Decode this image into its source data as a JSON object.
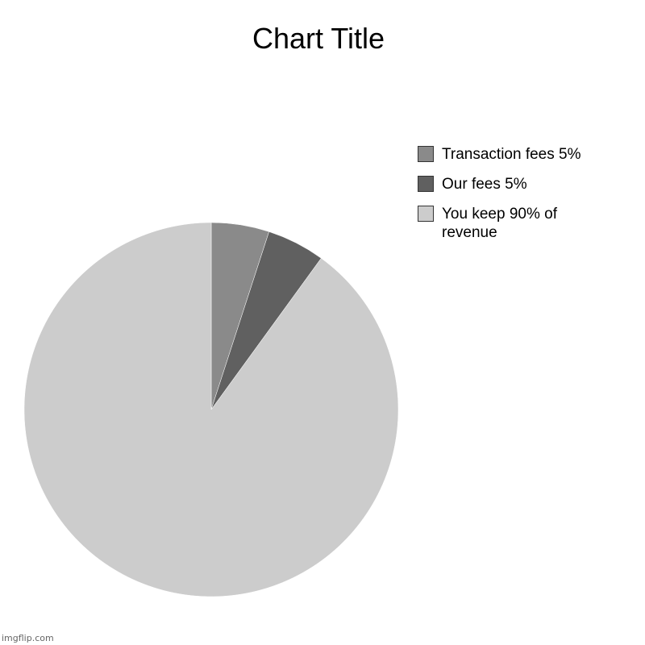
{
  "chart_data": {
    "type": "pie",
    "title": "Chart Title",
    "slices": [
      {
        "label": "Transaction fees 5%",
        "value": 5,
        "color": "#8a8a8a"
      },
      {
        "label": "Our fees 5%",
        "value": 5,
        "color": "#606060"
      },
      {
        "label": "You keep 90% of revenue",
        "value": 90,
        "color": "#cccccc"
      }
    ],
    "legend_placement": "right"
  },
  "watermark": "imgflip.com"
}
